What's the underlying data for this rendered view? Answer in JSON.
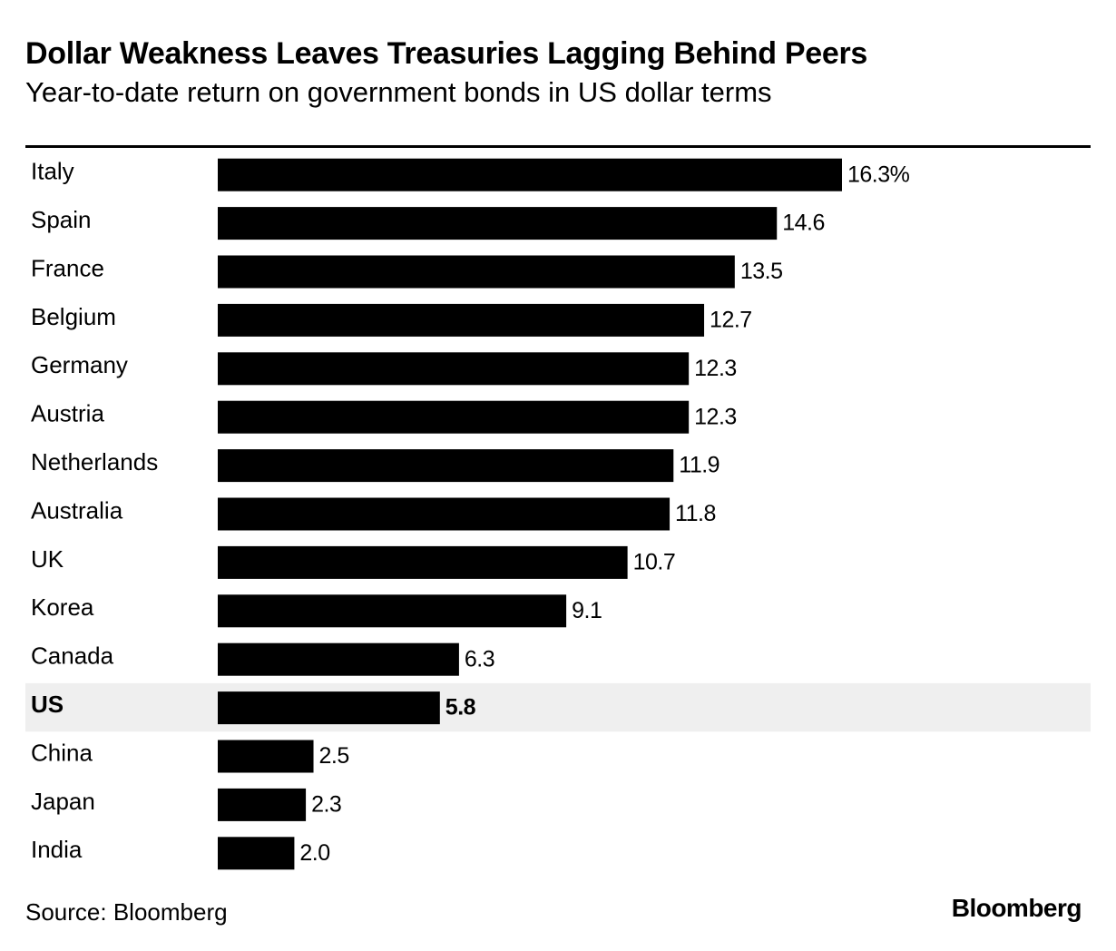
{
  "chart_data": {
    "type": "bar",
    "orientation": "horizontal",
    "title": "Dollar Weakness Leaves Treasuries Lagging Behind Peers",
    "subtitle": "Year-to-date return on government bonds in US dollar terms",
    "categories": [
      "Italy",
      "Spain",
      "France",
      "Belgium",
      "Germany",
      "Austria",
      "Netherlands",
      "Australia",
      "UK",
      "Korea",
      "Canada",
      "US",
      "China",
      "Japan",
      "India"
    ],
    "values": [
      16.3,
      14.6,
      13.5,
      12.7,
      12.3,
      12.3,
      11.9,
      11.8,
      10.7,
      9.1,
      6.3,
      5.8,
      2.5,
      2.3,
      2.0
    ],
    "value_labels": [
      "16.3%",
      "14.6",
      "13.5",
      "12.7",
      "12.3",
      "12.3",
      "11.9",
      "11.8",
      "10.7",
      "9.1",
      "6.3",
      "5.8",
      "2.5",
      "2.3",
      "2.0"
    ],
    "highlight": "US",
    "unit": "%",
    "xlim": [
      0,
      16.3
    ],
    "bar_color": "#000000",
    "highlight_band_color": "#efefef"
  },
  "footer": {
    "source": "Source: Bloomberg",
    "brand": "Bloomberg"
  }
}
